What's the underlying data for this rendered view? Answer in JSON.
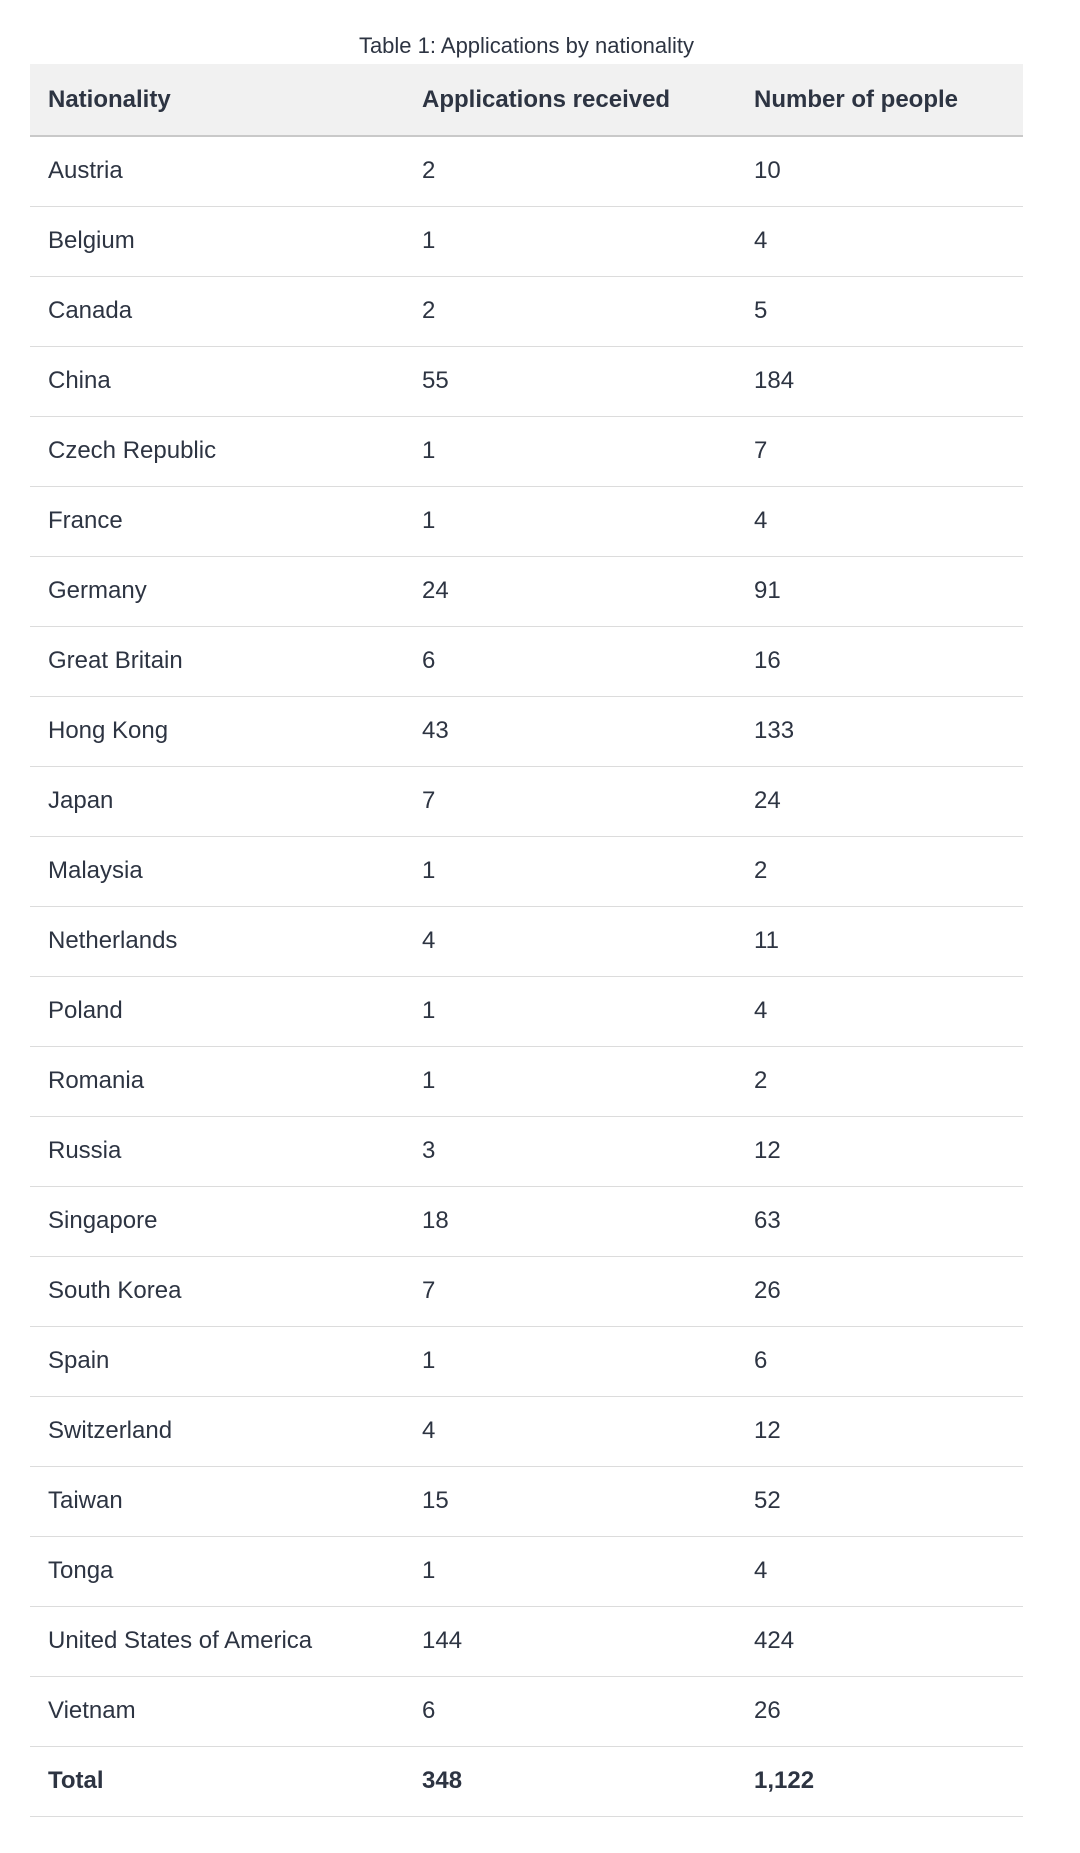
{
  "title": "Table 1: Applications by nationality",
  "table": {
    "columns": [
      "Nationality",
      "Applications received",
      "Number of people"
    ],
    "rows": [
      {
        "nationality": "Austria",
        "applications": "2",
        "people": "10"
      },
      {
        "nationality": "Belgium",
        "applications": "1",
        "people": "4"
      },
      {
        "nationality": "Canada",
        "applications": "2",
        "people": "5"
      },
      {
        "nationality": "China",
        "applications": "55",
        "people": "184"
      },
      {
        "nationality": "Czech Republic",
        "applications": "1",
        "people": "7"
      },
      {
        "nationality": "France",
        "applications": "1",
        "people": "4"
      },
      {
        "nationality": "Germany",
        "applications": "24",
        "people": "91"
      },
      {
        "nationality": "Great Britain",
        "applications": "6",
        "people": "16"
      },
      {
        "nationality": "Hong Kong",
        "applications": "43",
        "people": "133"
      },
      {
        "nationality": "Japan",
        "applications": "7",
        "people": "24"
      },
      {
        "nationality": "Malaysia",
        "applications": "1",
        "people": "2"
      },
      {
        "nationality": "Netherlands",
        "applications": "4",
        "people": "11"
      },
      {
        "nationality": "Poland",
        "applications": "1",
        "people": "4"
      },
      {
        "nationality": "Romania",
        "applications": "1",
        "people": "2"
      },
      {
        "nationality": "Russia",
        "applications": "3",
        "people": "12"
      },
      {
        "nationality": "Singapore",
        "applications": "18",
        "people": "63"
      },
      {
        "nationality": "South Korea",
        "applications": "7",
        "people": "26"
      },
      {
        "nationality": "Spain",
        "applications": "1",
        "people": "6"
      },
      {
        "nationality": "Switzerland",
        "applications": "4",
        "people": "12"
      },
      {
        "nationality": "Taiwan",
        "applications": "15",
        "people": "52"
      },
      {
        "nationality": "Tonga",
        "applications": "1",
        "people": "4"
      },
      {
        "nationality": "United States of America",
        "applications": "144",
        "people": "424"
      },
      {
        "nationality": "Vietnam",
        "applications": "6",
        "people": "26"
      }
    ],
    "total": {
      "nationality": "Total",
      "applications": "348",
      "people": "1,122"
    }
  },
  "colors": {
    "text": "#2d3442",
    "header_bg": "#f1f1f1",
    "header_border": "#c9c9c9",
    "row_border": "#dcdcdc",
    "page_bg": "#ffffff"
  }
}
